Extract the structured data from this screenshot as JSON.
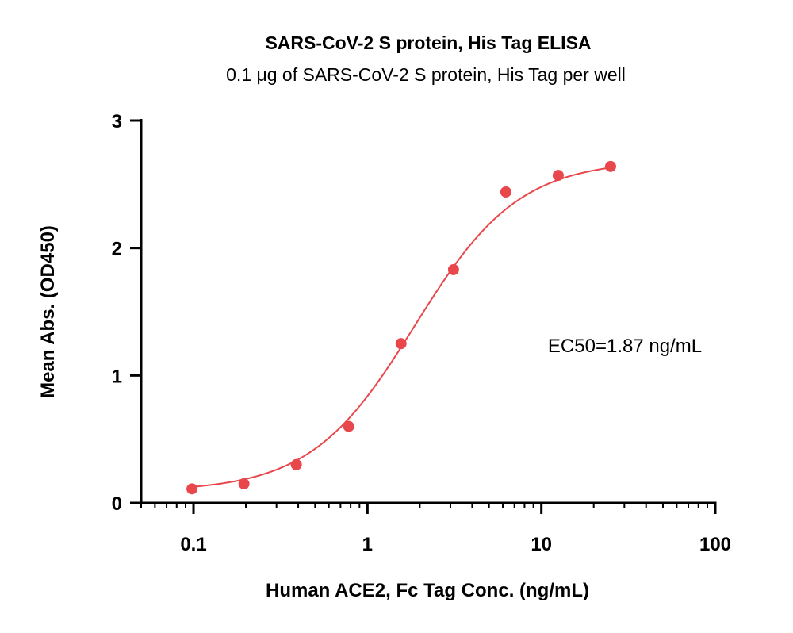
{
  "chart_data": {
    "type": "scatter",
    "title": "SARS-CoV-2 S protein, His Tag ELISA",
    "subtitle": "0.1 μg of SARS-CoV-2 S protein, His Tag per well",
    "xlabel": "Human ACE2, Fc Tag Conc. (ng/mL)",
    "ylabel": "Mean Abs. (OD450)",
    "x_scale": "log10",
    "xlim": [
      0.05,
      100
    ],
    "ylim": [
      0,
      3
    ],
    "x_ticks": [
      0.1,
      1,
      10,
      100
    ],
    "x_tick_labels": [
      "0.1",
      "1",
      "10",
      "100"
    ],
    "y_ticks": [
      0,
      1,
      2,
      3
    ],
    "y_tick_labels": [
      "0",
      "1",
      "2",
      "3"
    ],
    "grid": false,
    "series": [
      {
        "x": [
          0.098,
          0.195,
          0.39,
          0.78,
          1.56,
          3.125,
          6.25,
          12.5,
          25
        ],
        "y": [
          0.11,
          0.15,
          0.3,
          0.6,
          1.25,
          1.83,
          2.44,
          2.57,
          2.64
        ]
      }
    ],
    "fit": {
      "model": "4PL",
      "bottom": 0.09,
      "top": 2.69,
      "ec50": 1.87,
      "hill": 1.45
    },
    "annotation": "EC50=1.87 ng/mL",
    "color": "#e8474b"
  }
}
